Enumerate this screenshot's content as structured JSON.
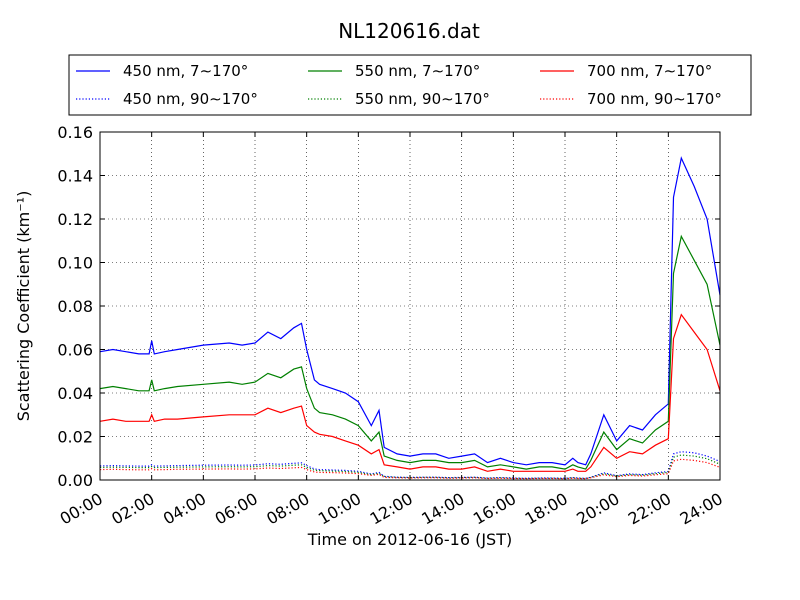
{
  "chart_data": {
    "type": "line",
    "title": "NL120616.dat",
    "xlabel": "Time on 2012-06-16 (JST)",
    "ylabel": "Scattering Coefficient (km⁻¹)",
    "xlim": [
      "2012-06-16 00:00",
      "2012-06-17 00:00"
    ],
    "ylim": [
      0.0,
      0.16
    ],
    "xticks": [
      "00:00",
      "02:00",
      "04:00",
      "06:00",
      "08:00",
      "10:00",
      "12:00",
      "14:00",
      "16:00",
      "18:00",
      "20:00",
      "22:00",
      "24:00"
    ],
    "yticks": [
      "0.00",
      "0.02",
      "0.04",
      "0.06",
      "0.08",
      "0.10",
      "0.12",
      "0.14",
      "0.16"
    ],
    "grid": true,
    "legend_position": "top",
    "x_hours": [
      0,
      0.5,
      1,
      1.5,
      1.9,
      2.0,
      2.1,
      2.5,
      3,
      4,
      5,
      5.5,
      6,
      6.5,
      7,
      7.5,
      7.8,
      8.0,
      8.3,
      8.5,
      9,
      9.5,
      10,
      10.5,
      10.8,
      11,
      11.5,
      12,
      12.5,
      13,
      13.5,
      14,
      14.5,
      15,
      15.5,
      16,
      16.5,
      17,
      17.5,
      18,
      18.3,
      18.5,
      18.8,
      19,
      19.5,
      20,
      20.5,
      21,
      21.5,
      22,
      22.2,
      22.5,
      23,
      23.5,
      24
    ],
    "series": [
      {
        "name": "450 nm, 7∼170°",
        "color": "#0000ff",
        "style": "solid",
        "values": [
          0.059,
          0.06,
          0.059,
          0.058,
          0.058,
          0.064,
          0.058,
          0.059,
          0.06,
          0.062,
          0.063,
          0.062,
          0.063,
          0.068,
          0.065,
          0.07,
          0.072,
          0.06,
          0.046,
          0.044,
          0.042,
          0.04,
          0.036,
          0.025,
          0.032,
          0.015,
          0.012,
          0.011,
          0.012,
          0.012,
          0.01,
          0.011,
          0.012,
          0.008,
          0.01,
          0.008,
          0.007,
          0.008,
          0.008,
          0.007,
          0.01,
          0.008,
          0.007,
          0.012,
          0.03,
          0.018,
          0.025,
          0.023,
          0.03,
          0.035,
          0.13,
          0.148,
          0.135,
          0.12,
          0.085
        ]
      },
      {
        "name": "550 nm, 7∼170°",
        "color": "#008000",
        "style": "solid",
        "values": [
          0.042,
          0.043,
          0.042,
          0.041,
          0.041,
          0.046,
          0.041,
          0.042,
          0.043,
          0.044,
          0.045,
          0.044,
          0.045,
          0.049,
          0.047,
          0.051,
          0.052,
          0.042,
          0.033,
          0.031,
          0.03,
          0.028,
          0.025,
          0.018,
          0.022,
          0.011,
          0.009,
          0.008,
          0.009,
          0.009,
          0.008,
          0.008,
          0.009,
          0.006,
          0.007,
          0.006,
          0.005,
          0.006,
          0.006,
          0.005,
          0.007,
          0.006,
          0.005,
          0.009,
          0.022,
          0.014,
          0.019,
          0.017,
          0.023,
          0.027,
          0.095,
          0.112,
          0.101,
          0.09,
          0.062
        ]
      },
      {
        "name": "700 nm, 7∼170°",
        "color": "#ff0000",
        "style": "solid",
        "values": [
          0.027,
          0.028,
          0.027,
          0.027,
          0.027,
          0.03,
          0.027,
          0.028,
          0.028,
          0.029,
          0.03,
          0.03,
          0.03,
          0.033,
          0.031,
          0.033,
          0.034,
          0.025,
          0.022,
          0.021,
          0.02,
          0.018,
          0.016,
          0.012,
          0.014,
          0.007,
          0.006,
          0.005,
          0.006,
          0.006,
          0.005,
          0.005,
          0.006,
          0.004,
          0.005,
          0.004,
          0.004,
          0.004,
          0.004,
          0.004,
          0.005,
          0.004,
          0.004,
          0.006,
          0.015,
          0.01,
          0.013,
          0.012,
          0.016,
          0.019,
          0.065,
          0.076,
          0.068,
          0.06,
          0.041
        ]
      },
      {
        "name": "450 nm, 90∼170°",
        "color": "#0000ff",
        "style": "dotted",
        "values": [
          0.0065,
          0.0066,
          0.0065,
          0.0064,
          0.0064,
          0.007,
          0.0064,
          0.0065,
          0.0066,
          0.0068,
          0.0069,
          0.0068,
          0.0069,
          0.0075,
          0.0072,
          0.0077,
          0.0079,
          0.0066,
          0.0051,
          0.0048,
          0.0046,
          0.0044,
          0.004,
          0.0028,
          0.0035,
          0.0017,
          0.0013,
          0.0012,
          0.0013,
          0.0013,
          0.0011,
          0.0012,
          0.0013,
          0.0009,
          0.0011,
          0.0009,
          0.0008,
          0.0009,
          0.0009,
          0.0008,
          0.0011,
          0.0009,
          0.0008,
          0.0013,
          0.0033,
          0.002,
          0.0028,
          0.0025,
          0.0033,
          0.0039,
          0.012,
          0.013,
          0.0125,
          0.011,
          0.0085
        ]
      },
      {
        "name": "550 nm, 90∼170°",
        "color": "#008000",
        "style": "dotted",
        "values": [
          0.0058,
          0.0059,
          0.0058,
          0.0057,
          0.0057,
          0.0062,
          0.0057,
          0.0058,
          0.0059,
          0.006,
          0.0061,
          0.006,
          0.0061,
          0.0066,
          0.0064,
          0.0068,
          0.007,
          0.0058,
          0.0045,
          0.0043,
          0.0041,
          0.0039,
          0.0035,
          0.0025,
          0.0031,
          0.0015,
          0.0012,
          0.0011,
          0.0012,
          0.0012,
          0.001,
          0.0011,
          0.0012,
          0.0008,
          0.001,
          0.0008,
          0.0007,
          0.0008,
          0.0008,
          0.0007,
          0.001,
          0.0008,
          0.0007,
          0.0012,
          0.0029,
          0.0018,
          0.0025,
          0.0022,
          0.0029,
          0.0035,
          0.0105,
          0.0115,
          0.011,
          0.0098,
          0.0072
        ]
      },
      {
        "name": "700 nm, 90∼170°",
        "color": "#ff0000",
        "style": "dotted",
        "values": [
          0.0048,
          0.0049,
          0.0048,
          0.0047,
          0.0047,
          0.0052,
          0.0047,
          0.0048,
          0.0049,
          0.005,
          0.0051,
          0.005,
          0.0051,
          0.0055,
          0.0053,
          0.0056,
          0.0058,
          0.0048,
          0.0037,
          0.0035,
          0.0034,
          0.0032,
          0.0029,
          0.0021,
          0.0026,
          0.0012,
          0.001,
          0.0009,
          0.001,
          0.001,
          0.0008,
          0.0009,
          0.001,
          0.0007,
          0.0008,
          0.0007,
          0.0006,
          0.0007,
          0.0007,
          0.0006,
          0.0008,
          0.0007,
          0.0006,
          0.001,
          0.0024,
          0.0015,
          0.0021,
          0.0018,
          0.0024,
          0.0029,
          0.0088,
          0.0095,
          0.009,
          0.008,
          0.0058
        ]
      }
    ],
    "legend_order": [
      0,
      1,
      2,
      3,
      4,
      5
    ]
  }
}
